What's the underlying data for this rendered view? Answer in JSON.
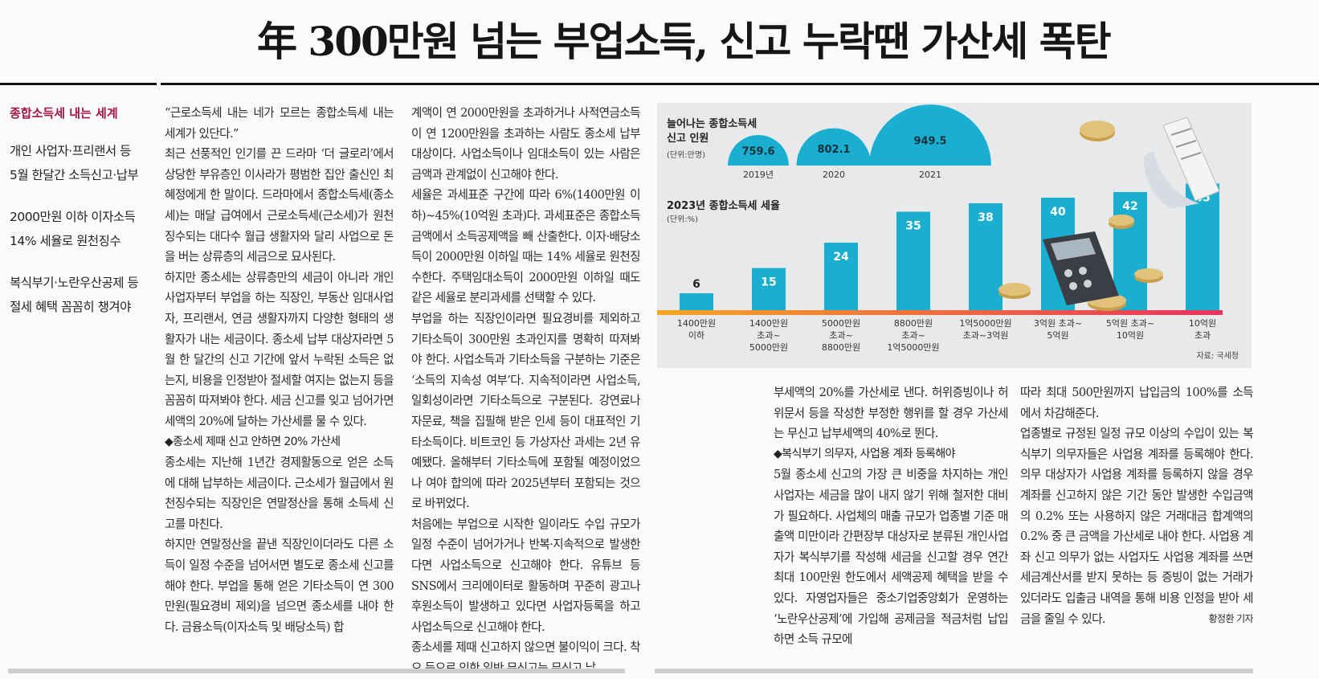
{
  "headline": "年 300만원 넘는 부업소득, 신고 누락땐 가산세 폭탄",
  "sidebar": {
    "title": "종합소득세 내는 세계",
    "blocks": [
      "개인 사업자·프리랜서 등\n5월 한달간 소득신고·납부",
      "2000만원 이하 이자소득\n14% 세율로 원천징수",
      "복식부기·노란우산공제 등\n절세 혜택 꼼꼼히 챙겨야"
    ]
  },
  "article": {
    "col1": "“근로소득세 내는 네가 모르는 종합소득세 내는 세계가 있단다.”\n  최근 선풍적인 인기를 끈 드라마 ‘더 글로리’에서 상당한 부유층인 이사라가 평범한 집안 출신인 최혜정에게 한 말이다. 드라마에서 종합소득세(종소세)는 매달 급여에서 근로소득세(근소세)가 원천징수되는 대다수 월급 생활자와 달리 사업으로 돈을 버는 상류층의 세금으로 묘사된다.\n  하지만 종소세는 상류층만의 세금이 아니라 개인 사업자부터 부업을 하는 직장인, 부동산 임대사업자, 프리랜서, 연금 생활자까지 다양한 형태의 생활자가 내는 세금이다. 종소세 납부 대상자라면 5월 한 달간의 신고 기간에 앞서 누락된 소득은 없는지, 비용을 인정받아 절세할 여지는 없는지 등을 꼼꼼히 따져봐야 한다. 세금 신고를 잊고 넘어가면 세액의 20%에 달하는 가산세를 물 수 있다.",
    "sub1": "◆종소세 제때 신고 안하면 20% 가산세",
    "col1b": "종소세는 지난해 1년간 경제활동으로 얻은 소득에 대해 납부하는 세금이다. 근소세가 월급에서 원천징수되는 직장인은 연말정산을 통해 소득세 신고를 마친다.\n  하지만 연말정산을 끝낸 직장인이더라도 다른 소득이 일정 수준을 넘어서면 별도로 종소세 신고를 해야 한다. 부업을 통해 얻은 기타소득이 연 300만원(필요경비 제외)을 넘으면 종소세를 내야 한다. 금융소득(이자소득 및 배당소득) 합",
    "col2": "계액이 연 2000만원을 초과하거나 사적연금소득이 연 1200만원을 초과하는 사람도 종소세 납부 대상이다. 사업소득이나 임대소득이 있는 사람은 금액과 관계없이 신고해야 한다.\n  세율은 과세표준 구간에 따라 6%(1400만원 이하)~45%(10억원 초과)다. 과세표준은 종합소득금액에서 소득공제액을 빼 산출한다. 이자·배당소득이 2000만원 이하일 때는 14% 세율로 원천징수한다. 주택임대소득이 2000만원 이하일 때도 같은 세율로 분리과세를 선택할 수 있다.\n  부업을 하는 직장인이라면 필요경비를 제외하고 기타소득이 300만원 초과인지를 명확히 따져봐야 한다. 사업소득과 기타소득을 구분하는 기준은 ‘소득의 지속성 여부’다. 지속적이라면 사업소득, 일회성이라면 기타소득으로 구분된다. 강연료나 자문료, 책을 집필해 받은 인세 등이 대표적인 기타소득이다. 비트코인 등 가상자산 과세는 2년 유예됐다. 올해부터 기타소득에 포함될 예정이었으나 여야 합의에 따라 2025년부터 포함되는 것으로 바뀌었다.\n  처음에는 부업으로 시작한 일이라도 수입 규모가 일정 수준이 넘어가거나 반복·지속적으로 발생한다면 사업소득으로 신고해야 한다. 유튜브 등 SNS에서 크리에이터로 활동하며 꾸준히 광고나 후원소득이 발생하고 있다면 사업자등록을 하고 사업소득으로 신고해야 한다.\n  종소세를 제때 신고하지 않으면 불이익이 크다. 착오 등으로 인한 일반 무신고는 무신고 납",
    "col3": "부세액의 20%를 가산세로 낸다. 허위증빙이나 허위문서 등을 작성한 부정한 행위를 할 경우 가산세는 무신고 납부세액의 40%로 뛴다.",
    "sub2": "◆복식부기 의무자, 사업용 계좌 등록해야",
    "col3b": "5월 종소세 신고의 가장 큰 비중을 차지하는 개인 사업자는 세금을 많이 내지 않기 위해 철저한 대비가 필요하다. 사업체의 매출 규모가 업종별 기준 매출액 미만이라 간편장부 대상자로 분류된 개인사업자가 복식부기를 작성해 세금을 신고할 경우 연간 최대 100만원 한도에서 세액공제 혜택을 받을 수 있다. 자영업자들은 중소기업중앙회가 운영하는 ‘노란우산공제’에 가입해 공제금을 적금처럼 납입하면 소득 규모에",
    "col4": "따라 최대 500만원까지 납입금의 100%를 소득에서 차감해준다.\n  업종별로 규정된 일정 규모 이상의 수입이 있는 복식부기 의무자들은 사업용 계좌를 등록해야 한다. 의무 대상자가 사업용 계좌를 등록하지 않을 경우 계좌를 신고하지 않은 기간 동안 발생한 수입금액의 0.2% 또는 사용하지 않은 거래대금 합계액의 0.2% 중 큰 금액을 가산세로 내야 한다. 사업용 계좌 신고 의무가 없는 사업자도 사업용 계좌를 쓰면 세금계산서를 받지 못하는 등 증빙이 없는 거래가 있더라도 입출금 내역을 통해 비용 인정을 받아 세금을 줄일 수 있다.",
    "byline": "황정환 기자"
  },
  "colors": {
    "bar": "#1aaed0",
    "bg": "#e8e9eb",
    "accent": "#a5154a"
  },
  "chart_data": [
    {
      "type": "bar",
      "title": "늘어나는 종합소득세\n신고 인원",
      "unit": "(단위:만명)",
      "categories": [
        "2019년",
        "2020",
        "2021"
      ],
      "values": [
        759.6,
        802.1,
        949.5
      ],
      "style": "semicircle"
    },
    {
      "type": "bar",
      "title": "2023년 종합소득세 세율",
      "unit": "(단위:%)",
      "categories": [
        "1400만원\n이하",
        "1400만원\n초과~\n5000만원",
        "5000만원\n초과~\n8800만원",
        "8800만원\n초과~\n1억5000만원",
        "1억5000만원\n초과~3억원",
        "3억원 초과~\n5억원",
        "5억원 초과~\n10억원",
        "10억원\n초과"
      ],
      "values": [
        6,
        15,
        24,
        35,
        38,
        40,
        42,
        45
      ],
      "ylim": [
        0,
        48
      ],
      "source": "자료: 국세청"
    }
  ]
}
